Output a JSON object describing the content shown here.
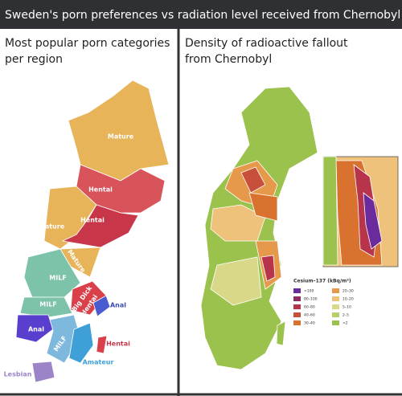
{
  "header": {
    "title": "Sweden's porn preferences vs radiation level received from Chernobyl"
  },
  "left": {
    "title": "Most popular porn categories per region",
    "labels": [
      "Mature",
      "Hentai",
      "Hentai",
      "Mature",
      "Mature",
      "MILF",
      "MILF",
      "Big Dick",
      "Hentai",
      "Anal",
      "Anal",
      "MILF",
      "Hentai",
      "Amateur",
      "Lesbian"
    ]
  },
  "right": {
    "title": "Density of radioactive fallout from Chernobyl",
    "legend": {
      "title": "Cesium–137 (kBq/m²)",
      "items": [
        {
          "label": ">100",
          "color": "#6a2c9c"
        },
        {
          "label": "80–100",
          "color": "#8c2d62"
        },
        {
          "label": "60–80",
          "color": "#b8344a"
        },
        {
          "label": "40–60",
          "color": "#c8503a"
        },
        {
          "label": "30–40",
          "color": "#d9722f"
        },
        {
          "label": "20–30",
          "color": "#e6994a"
        },
        {
          "label": "10–20",
          "color": "#eec27a"
        },
        {
          "label": "5–10",
          "color": "#d9d889"
        },
        {
          "label": "2–5",
          "color": "#b7cf6a"
        },
        {
          "label": "<2",
          "color": "#9cc24e"
        }
      ]
    }
  }
}
